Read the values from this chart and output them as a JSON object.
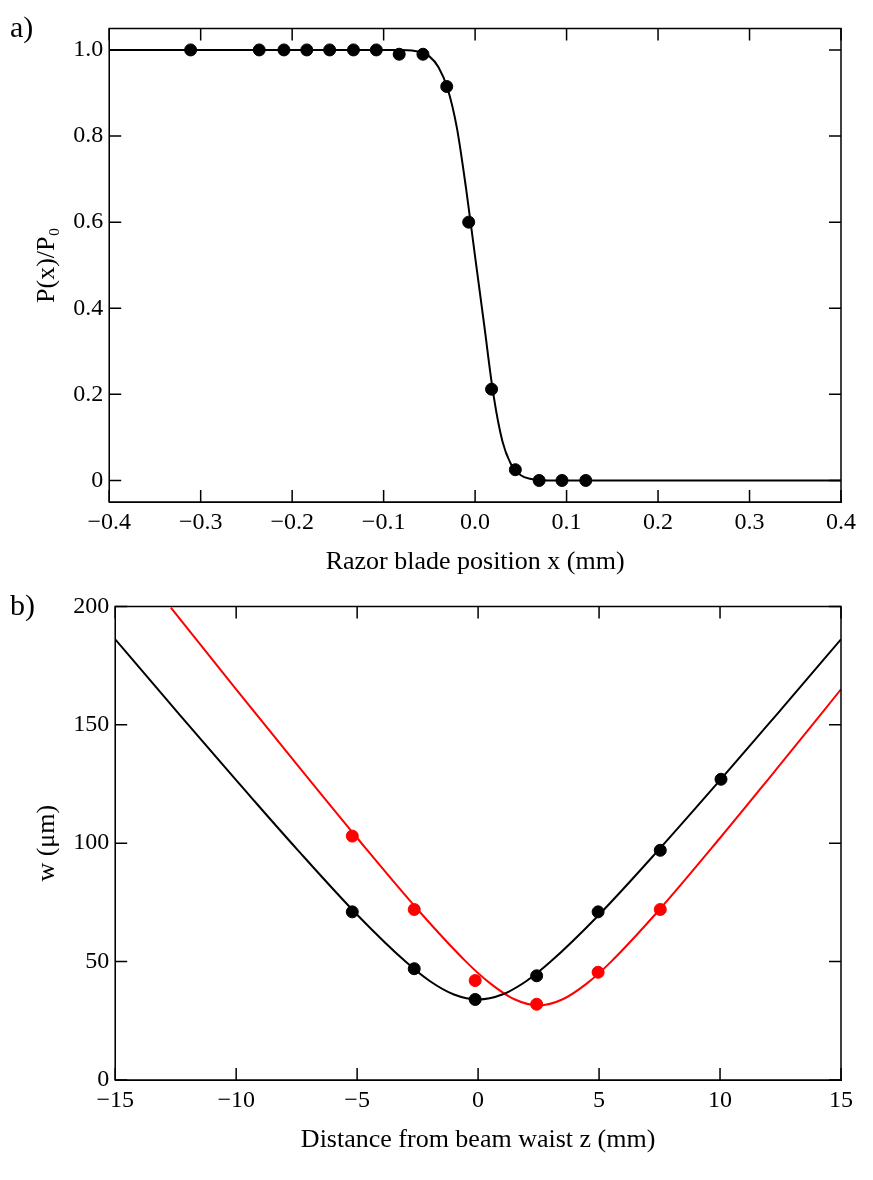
{
  "chart_data": [
    {
      "type": "scatter",
      "annotations": [
        "a)"
      ],
      "xlabel": "Razor blade position x (mm)",
      "ylabel": "P(x)/P₀",
      "xlim": [
        -0.4,
        0.4
      ],
      "ylim": [
        -0.05,
        1.05
      ],
      "xticks": [
        {
          "value": -0.4,
          "label": "−0.4"
        },
        {
          "value": -0.3,
          "label": "−0.3"
        },
        {
          "value": -0.2,
          "label": "−0.2"
        },
        {
          "value": -0.1,
          "label": "−0.1"
        },
        {
          "value": 0,
          "label": "0.0"
        },
        0.1,
        0.2,
        0.3,
        0.4
      ],
      "yticks": [
        0,
        0.2,
        0.4,
        0.6,
        0.8,
        {
          "value": 1,
          "label": "1.0"
        }
      ],
      "series": [
        {
          "type": "scatter",
          "color": "#000000",
          "marker": "circle",
          "x": [
            -0.311,
            -0.236,
            -0.209,
            -0.184,
            -0.159,
            -0.133,
            -0.108,
            -0.083,
            -0.057,
            -0.031,
            -0.007,
            0.018,
            0.044,
            0.07,
            0.095,
            0.121
          ],
          "values": [
            1,
            1,
            1,
            1,
            1,
            1,
            1,
            0.99,
            0.99,
            0.915,
            0.6,
            0.212,
            0.025,
            0,
            0,
            0
          ]
        },
        {
          "type": "line",
          "color": "#000000",
          "marker": "none",
          "line_style": "solid",
          "x": [
            -0.4,
            -0.08,
            -0.06,
            -0.05,
            -0.04,
            -0.03,
            -0.02,
            -0.01,
            0,
            0.01,
            0.02,
            0.03,
            0.04,
            0.05,
            0.06,
            0.08,
            0.4
          ],
          "values": [
            1,
            1,
            0.995,
            0.985,
            0.96,
            0.91,
            0.82,
            0.68,
            0.52,
            0.36,
            0.2,
            0.09,
            0.035,
            0.012,
            0.004,
            0,
            0
          ]
        }
      ]
    },
    {
      "type": "scatter",
      "annotations": [
        "b)"
      ],
      "xlabel": "Distance from beam waist z (mm)",
      "ylabel": "w (μm)",
      "xlim": [
        -15,
        15
      ],
      "ylim": [
        0,
        200
      ],
      "xticks": [
        {
          "value": -15,
          "label": "−15"
        },
        {
          "value": -10,
          "label": "−10"
        },
        {
          "value": -5,
          "label": "−5"
        },
        0,
        5,
        10,
        15
      ],
      "yticks": [
        0,
        50,
        100,
        150,
        200
      ],
      "series": [
        {
          "type": "scatter",
          "color": "#000000",
          "marker": "circle",
          "x": [
            -5.2,
            -2.64,
            -0.12,
            2.42,
            4.96,
            7.53,
            10.04
          ],
          "values": [
            71,
            47,
            34,
            44,
            71,
            97,
            127
          ]
        },
        {
          "type": "scatter",
          "color": "#ff0000",
          "marker": "circle",
          "x": [
            -5.2,
            -2.64,
            -0.12,
            2.42,
            4.96,
            7.53
          ],
          "values": [
            103,
            72,
            42,
            32,
            45.5,
            72
          ]
        },
        {
          "type": "line",
          "color": "#000000",
          "marker": "none",
          "line_style": "solid",
          "x": [
            -15,
            -12.5,
            -10,
            -7.5,
            -5,
            -3,
            -2,
            -1,
            0,
            1,
            2,
            3,
            5,
            7.5,
            10,
            12.5,
            15
          ],
          "values": [
            186.1,
            156.2,
            126.6,
            97.6,
            69.8,
            50,
            41.8,
            36.1,
            34,
            36.1,
            41.8,
            50,
            69.8,
            97.6,
            126.6,
            156.2,
            186.1
          ]
        },
        {
          "type": "line",
          "color": "#ff0000",
          "marker": "none",
          "line_style": "solid",
          "x": [
            -12.7,
            -10,
            -7.5,
            -5,
            -2.5,
            -0.5,
            0.5,
            1.5,
            2.5,
            3.5,
            4.5,
            5.5,
            7.5,
            10,
            12.5,
            15
          ],
          "values": [
            199.5,
            165,
            133.4,
            102.2,
            72,
            50,
            40.8,
            34.1,
            31.5,
            34.1,
            40.8,
            50,
            72,
            102.2,
            133.4,
            165
          ]
        }
      ]
    }
  ]
}
